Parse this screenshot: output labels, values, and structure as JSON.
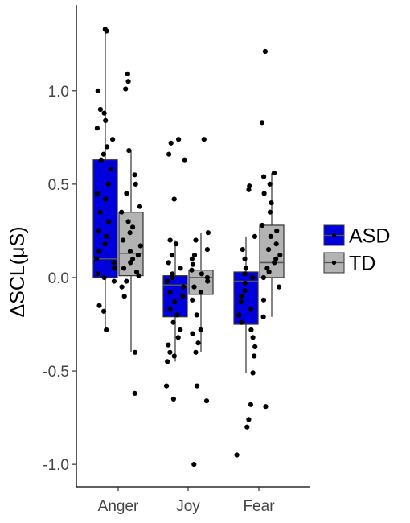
{
  "chart_data": {
    "type": "boxplot",
    "ylabel": "ΔSCL(μS)",
    "xlabel": "",
    "categories": [
      "Anger",
      "Joy",
      "Fear"
    ],
    "y_ticks": [
      1.0,
      0.5,
      0.0,
      -0.5,
      -1.0
    ],
    "y_tick_labels": [
      "1.0",
      "0.5",
      "0.0",
      "-0.5",
      "-1.0"
    ],
    "ylim": [
      -1.12,
      1.46
    ],
    "grid": false,
    "legend_position": "right",
    "series": [
      {
        "name": "ASD",
        "color": "#0000dd",
        "boxes": [
          {
            "category": "Anger",
            "min": -0.28,
            "q1": 0.0,
            "median": 0.1,
            "q3": 0.63,
            "max": 1.33,
            "points": [
              1.33,
              1.32,
              1.0,
              0.9,
              0.88,
              0.84,
              0.8,
              0.74,
              0.7,
              0.66,
              0.63,
              0.58,
              0.5,
              0.45,
              0.42,
              0.35,
              0.3,
              0.25,
              0.22,
              0.18,
              0.14,
              0.1,
              0.08,
              0.05,
              0.02,
              0.0,
              -0.02,
              -0.15,
              -0.18,
              -0.28
            ]
          },
          {
            "category": "Joy",
            "min": -0.45,
            "q1": -0.21,
            "median": -0.04,
            "q3": 0.01,
            "max": 0.2,
            "points": [
              0.74,
              0.72,
              0.66,
              0.63,
              0.42,
              0.2,
              0.18,
              0.12,
              0.08,
              0.05,
              0.02,
              0.0,
              -0.02,
              -0.05,
              -0.08,
              -0.1,
              -0.13,
              -0.17,
              -0.2,
              -0.24,
              -0.28,
              -0.32,
              -0.36,
              -0.4,
              -0.42,
              -0.45,
              -0.58,
              -0.65
            ]
          },
          {
            "category": "Fear",
            "min": -0.51,
            "q1": -0.25,
            "median": -0.02,
            "q3": 0.03,
            "max": 0.22,
            "points": [
              0.49,
              0.47,
              0.22,
              0.15,
              0.1,
              0.05,
              0.02,
              0.0,
              -0.03,
              -0.07,
              -0.1,
              -0.13,
              -0.17,
              -0.2,
              -0.24,
              -0.28,
              -0.32,
              -0.37,
              -0.42,
              -0.51,
              -0.68,
              -0.76,
              -0.8,
              -0.95
            ]
          }
        ]
      },
      {
        "name": "TD",
        "color": "#b3b3b3",
        "boxes": [
          {
            "category": "Anger",
            "min": -0.4,
            "q1": 0.01,
            "median": 0.13,
            "q3": 0.35,
            "max": 0.68,
            "points": [
              1.09,
              1.05,
              1.01,
              0.68,
              0.55,
              0.5,
              0.45,
              0.38,
              0.35,
              0.3,
              0.27,
              0.24,
              0.2,
              0.17,
              0.14,
              0.12,
              0.1,
              0.08,
              0.05,
              0.03,
              0.01,
              -0.02,
              -0.05,
              -0.1,
              -0.4,
              -0.62
            ]
          },
          {
            "category": "Joy",
            "min": -0.4,
            "q1": -0.09,
            "median": 0.0,
            "q3": 0.04,
            "max": 0.24,
            "points": [
              0.74,
              0.24,
              0.2,
              0.15,
              0.12,
              0.1,
              0.07,
              0.04,
              0.02,
              0.0,
              -0.02,
              -0.05,
              -0.08,
              -0.12,
              -0.2,
              -0.28,
              -0.3,
              -0.35,
              -0.4,
              -0.58,
              -0.66,
              -1.0
            ]
          },
          {
            "category": "Fear",
            "min": -0.21,
            "q1": 0.0,
            "median": 0.08,
            "q3": 0.28,
            "max": 0.56,
            "points": [
              1.21,
              0.83,
              0.56,
              0.54,
              0.5,
              0.45,
              0.4,
              0.35,
              0.28,
              0.25,
              0.22,
              0.18,
              0.15,
              0.12,
              0.1,
              0.08,
              0.05,
              0.03,
              0.0,
              -0.05,
              -0.12,
              -0.21,
              -0.69
            ]
          }
        ]
      }
    ]
  }
}
